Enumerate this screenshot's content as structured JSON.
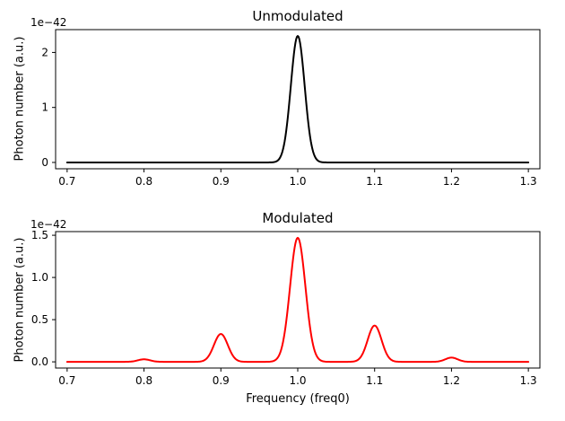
{
  "figure": {
    "background": "#ffffff",
    "frame_color": "#000000",
    "text_color": "#000000"
  },
  "chart_data": [
    {
      "type": "line",
      "name": "unmodulated",
      "title": "Unmodulated",
      "xlabel": "",
      "ylabel": "Photon number (a.u.)",
      "offset_text": "1e−42",
      "line_color": "#000000",
      "line_width": 2,
      "grid": false,
      "legend": null,
      "xlim": [
        0.685,
        1.315
      ],
      "ylim": [
        -0.115,
        2.415
      ],
      "x_range": [
        0.7,
        1.3
      ],
      "xticks": [
        0.7,
        0.8,
        0.9,
        1.0,
        1.1,
        1.2,
        1.3
      ],
      "xtick_labels": [
        "0.7",
        "0.8",
        "0.9",
        "1.0",
        "1.1",
        "1.2",
        "1.3"
      ],
      "yticks": [
        0,
        1,
        2
      ],
      "ytick_labels": [
        "0",
        "1",
        "2"
      ],
      "units_scale": "1e-42",
      "baseline": 0,
      "peaks": [
        {
          "center": 1.0,
          "amplitude": 2.3,
          "sigma": 0.009
        }
      ]
    },
    {
      "type": "line",
      "name": "modulated",
      "title": "Modulated",
      "xlabel": "Frequency (freq0)",
      "ylabel": "Photon number (a.u.)",
      "offset_text": "1e−42",
      "line_color": "#ff0000",
      "line_width": 2,
      "grid": false,
      "legend": null,
      "xlim": [
        0.685,
        1.315
      ],
      "ylim": [
        -0.0735,
        1.5435
      ],
      "x_range": [
        0.7,
        1.3
      ],
      "xticks": [
        0.7,
        0.8,
        0.9,
        1.0,
        1.1,
        1.2,
        1.3
      ],
      "xtick_labels": [
        "0.7",
        "0.8",
        "0.9",
        "1.0",
        "1.1",
        "1.2",
        "1.3"
      ],
      "yticks": [
        0,
        0.5,
        1.0,
        1.5
      ],
      "ytick_labels": [
        "0.0",
        "0.5",
        "1.0",
        "1.5"
      ],
      "units_scale": "1e-42",
      "baseline": 0,
      "peaks": [
        {
          "center": 0.8,
          "amplitude": 0.03,
          "sigma": 0.008
        },
        {
          "center": 0.9,
          "amplitude": 0.33,
          "sigma": 0.009
        },
        {
          "center": 1.0,
          "amplitude": 1.47,
          "sigma": 0.01
        },
        {
          "center": 1.1,
          "amplitude": 0.43,
          "sigma": 0.009
        },
        {
          "center": 1.2,
          "amplitude": 0.05,
          "sigma": 0.008
        }
      ]
    }
  ]
}
